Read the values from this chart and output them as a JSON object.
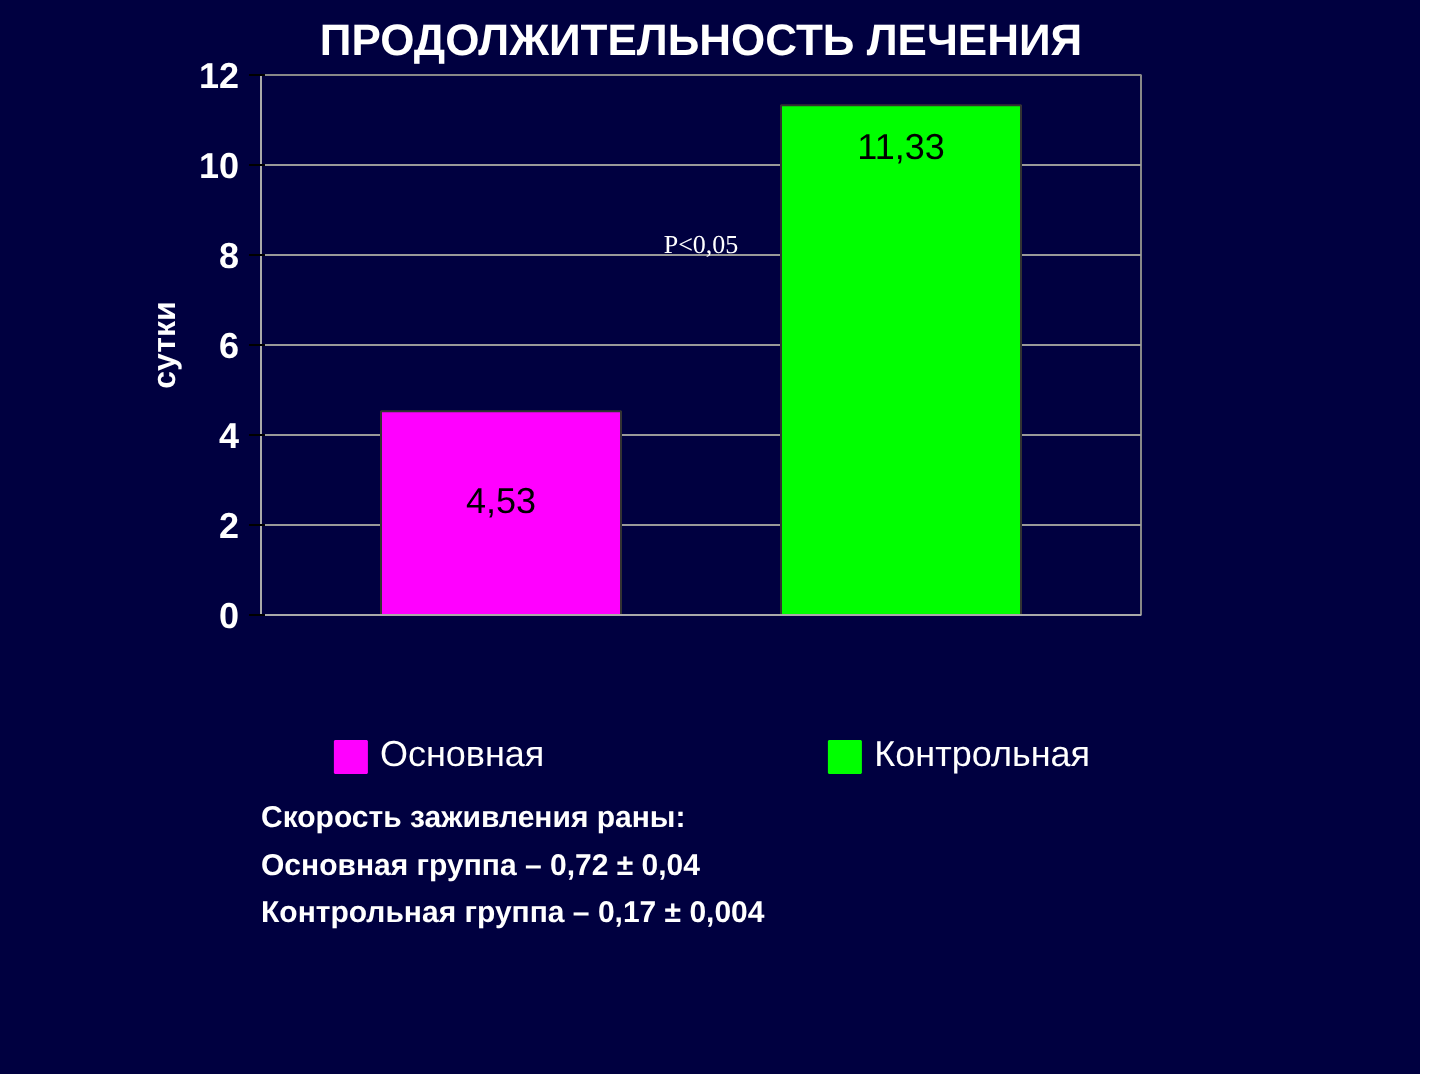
{
  "chart_data": {
    "type": "bar",
    "title": "ПРОДОЛЖИТЕЛЬНОСТЬ ЛЕЧЕНИЯ",
    "ylabel": "сутки",
    "categories": [
      null,
      null
    ],
    "series": [
      {
        "name": "Основная",
        "color": "#ff00ff",
        "values": [
          4.53,
          null
        ],
        "value_labels": [
          "4,53",
          null
        ]
      },
      {
        "name": "Контрольная",
        "color": "#00ff00",
        "values": [
          null,
          11.33
        ],
        "value_labels": [
          null,
          "11,33"
        ]
      }
    ],
    "ylim": [
      0,
      12
    ],
    "yticks": [
      0,
      2,
      4,
      6,
      8,
      10,
      12
    ],
    "grid": "y",
    "legend": "bottom",
    "annotations": [
      "P<0,05",
      "Скорость заживления раны:",
      "Основная группа – 0,72 ± 0,04",
      "Контрольная группа – 0,17 ± 0,004"
    ]
  }
}
